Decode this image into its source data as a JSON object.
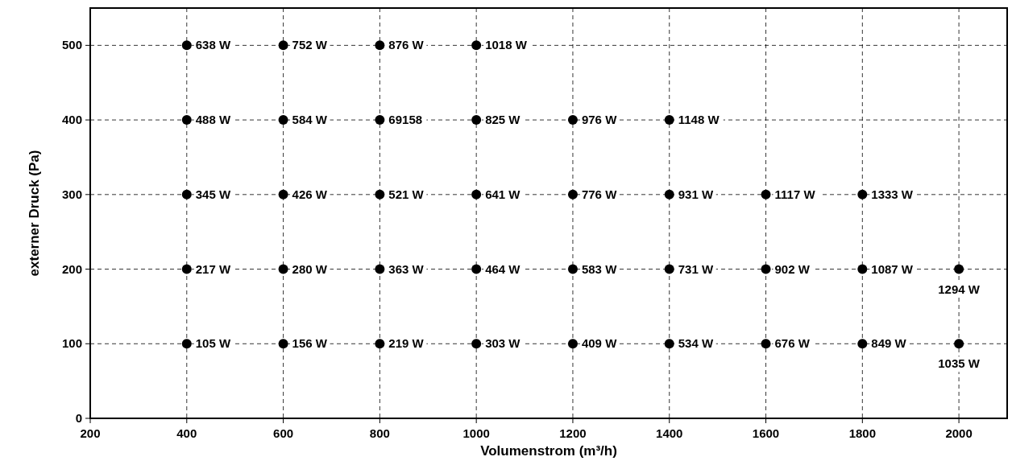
{
  "chart_data": {
    "type": "scatter",
    "xlabel": "Volumenstrom (m³/h)",
    "ylabel": "externer Druck (Pa)",
    "xlim": [
      200,
      2100
    ],
    "xticks": [
      200,
      400,
      600,
      800,
      1000,
      1200,
      1400,
      1600,
      1800,
      2000
    ],
    "ylim": [
      0,
      550
    ],
    "yticks": [
      0,
      100,
      200,
      300,
      400,
      500
    ],
    "grid": true,
    "marker": "circle",
    "series": [
      {
        "color": "#000000",
        "x": [
          400,
          600,
          800,
          1000,
          400,
          600,
          800,
          1000,
          1200,
          1400,
          400,
          600,
          800,
          1000,
          1200,
          1400,
          1600,
          1800,
          400,
          600,
          800,
          1000,
          1200,
          1400,
          1600,
          1800,
          2000,
          400,
          600,
          800,
          1000,
          1200,
          1400,
          1600,
          1800,
          2000
        ],
        "values": [
          500,
          500,
          500,
          500,
          400,
          400,
          400,
          400,
          400,
          400,
          300,
          300,
          300,
          300,
          300,
          300,
          300,
          300,
          200,
          200,
          200,
          200,
          200,
          200,
          200,
          200,
          200,
          100,
          100,
          100,
          100,
          100,
          100,
          100,
          100,
          100
        ]
      }
    ],
    "annotations": [
      {
        "text": "638 W",
        "x": 400,
        "y": 500
      },
      {
        "text": "752 W",
        "x": 600,
        "y": 500
      },
      {
        "text": "876 W",
        "x": 800,
        "y": 500
      },
      {
        "text": "1018 W",
        "x": 1000,
        "y": 500
      },
      {
        "text": "488 W",
        "x": 400,
        "y": 400
      },
      {
        "text": "584 W",
        "x": 600,
        "y": 400
      },
      {
        "text": "69158",
        "x": 800,
        "y": 400
      },
      {
        "text": "825 W",
        "x": 1000,
        "y": 400
      },
      {
        "text": "976 W",
        "x": 1200,
        "y": 400
      },
      {
        "text": "1148 W",
        "x": 1400,
        "y": 400
      },
      {
        "text": "345 W",
        "x": 400,
        "y": 300
      },
      {
        "text": "426 W",
        "x": 600,
        "y": 300
      },
      {
        "text": "521 W",
        "x": 800,
        "y": 300
      },
      {
        "text": "641 W",
        "x": 1000,
        "y": 300
      },
      {
        "text": "776 W",
        "x": 1200,
        "y": 300
      },
      {
        "text": "931 W",
        "x": 1400,
        "y": 300
      },
      {
        "text": "1117 W",
        "x": 1600,
        "y": 300
      },
      {
        "text": "1333 W",
        "x": 1800,
        "y": 300
      },
      {
        "text": "217 W",
        "x": 400,
        "y": 200
      },
      {
        "text": "280 W",
        "x": 600,
        "y": 200
      },
      {
        "text": "363 W",
        "x": 800,
        "y": 200
      },
      {
        "text": "464 W",
        "x": 1000,
        "y": 200
      },
      {
        "text": "583 W",
        "x": 1200,
        "y": 200
      },
      {
        "text": "731 W",
        "x": 1400,
        "y": 200
      },
      {
        "text": "902 W",
        "x": 1600,
        "y": 200
      },
      {
        "text": "1087 W",
        "x": 1800,
        "y": 200
      },
      {
        "text": "1294 W",
        "x": 2000,
        "y": 200
      },
      {
        "text": "105 W",
        "x": 400,
        "y": 100
      },
      {
        "text": "156 W",
        "x": 600,
        "y": 100
      },
      {
        "text": "219 W",
        "x": 800,
        "y": 100
      },
      {
        "text": "303 W",
        "x": 1000,
        "y": 100
      },
      {
        "text": "409 W",
        "x": 1200,
        "y": 100
      },
      {
        "text": "534 W",
        "x": 1400,
        "y": 100
      },
      {
        "text": "676 W",
        "x": 1600,
        "y": 100
      },
      {
        "text": "849 W",
        "x": 1800,
        "y": 100
      },
      {
        "text": "1035 W",
        "x": 2000,
        "y": 100
      }
    ]
  }
}
